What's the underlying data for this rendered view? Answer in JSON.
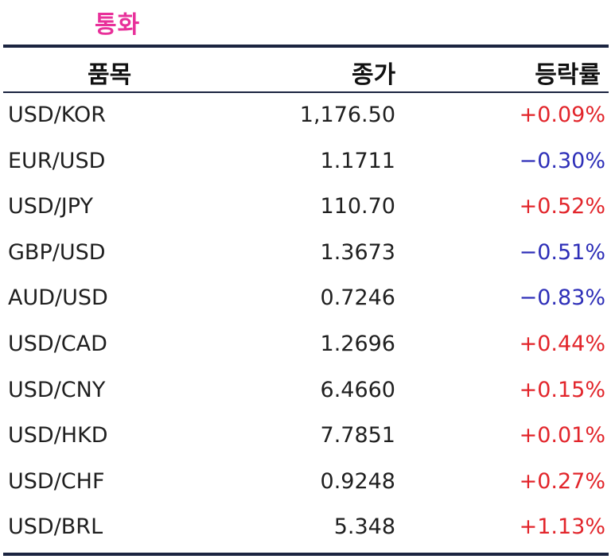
{
  "title": "통화",
  "columns": {
    "item": "품목",
    "close": "종가",
    "change": "등락률"
  },
  "colors": {
    "title": "#e8309a",
    "up": "#e2252b",
    "down": "#2e2fb8",
    "rule": "#1b2440"
  },
  "rows": [
    {
      "item": "USD/KOR",
      "close": "1,176.50",
      "change": "+0.09%",
      "direction": "up"
    },
    {
      "item": "EUR/USD",
      "close": "1.1711",
      "change": "−0.30%",
      "direction": "down"
    },
    {
      "item": "USD/JPY",
      "close": "110.70",
      "change": "+0.52%",
      "direction": "up"
    },
    {
      "item": "GBP/USD",
      "close": "1.3673",
      "change": "−0.51%",
      "direction": "down"
    },
    {
      "item": "AUD/USD",
      "close": "0.7246",
      "change": "−0.83%",
      "direction": "down"
    },
    {
      "item": "USD/CAD",
      "close": "1.2696",
      "change": "+0.44%",
      "direction": "up"
    },
    {
      "item": "USD/CNY",
      "close": "6.4660",
      "change": "+0.15%",
      "direction": "up"
    },
    {
      "item": "USD/HKD",
      "close": "7.7851",
      "change": "+0.01%",
      "direction": "up"
    },
    {
      "item": "USD/CHF",
      "close": "0.9248",
      "change": "+0.27%",
      "direction": "up"
    },
    {
      "item": "USD/BRL",
      "close": "5.348",
      "change": "+1.13%",
      "direction": "up"
    }
  ]
}
